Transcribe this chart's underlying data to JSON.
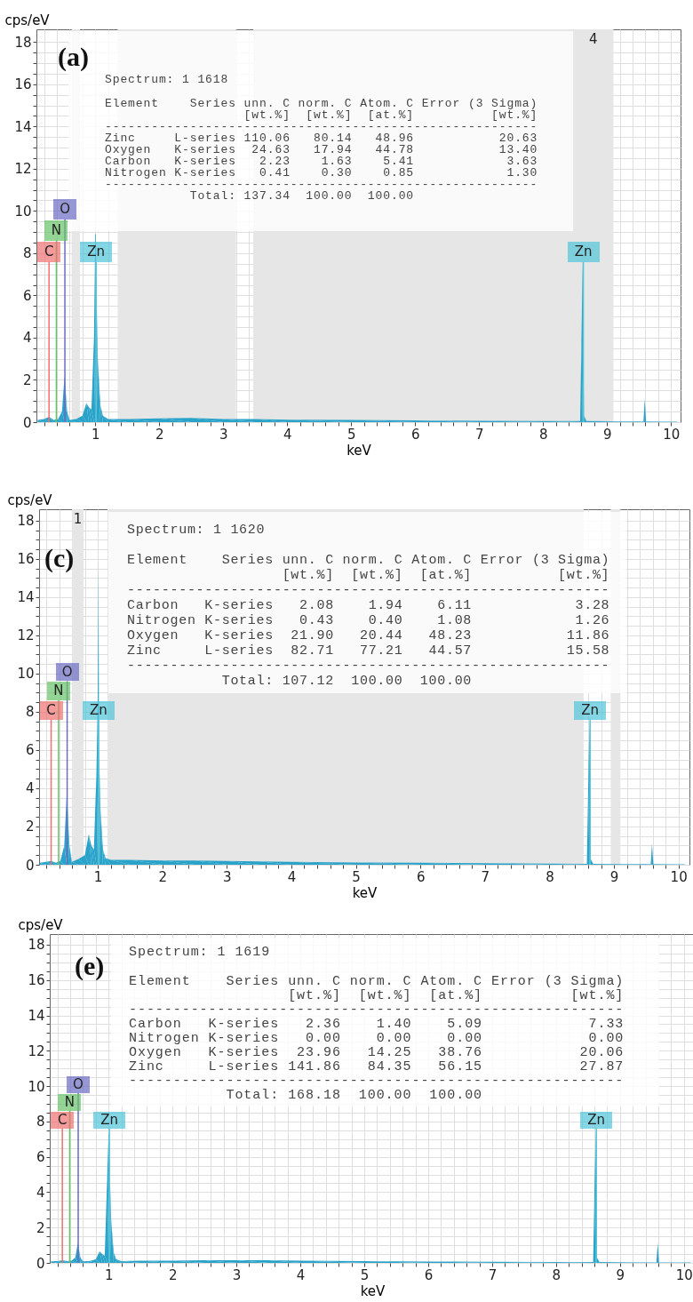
{
  "chart_data": [
    {
      "type": "area",
      "title": "(a)",
      "xlabel": "keV",
      "ylabel": "cps/eV",
      "grid": true,
      "xlim": [
        0.08,
        10.15
      ],
      "ylim": [
        0,
        18.6
      ],
      "xticks": [
        {
          "value": 0.2,
          "label": null
        },
        {
          "value": 0.4,
          "label": null
        },
        {
          "value": 0.6,
          "label": null
        },
        {
          "value": 0.8,
          "label": null
        },
        1,
        {
          "value": 1.2,
          "label": null
        },
        {
          "value": 1.4,
          "label": null
        },
        {
          "value": 1.6,
          "label": null
        },
        {
          "value": 1.8,
          "label": null
        },
        2,
        {
          "value": 2.2,
          "label": null
        },
        {
          "value": 2.4,
          "label": null
        },
        {
          "value": 2.6,
          "label": null
        },
        {
          "value": 2.8,
          "label": null
        },
        3,
        {
          "value": 3.2,
          "label": null
        },
        {
          "value": 3.4,
          "label": null
        },
        {
          "value": 3.6,
          "label": null
        },
        {
          "value": 3.8,
          "label": null
        },
        4,
        {
          "value": 4.2,
          "label": null
        },
        {
          "value": 4.4,
          "label": null
        },
        {
          "value": 4.6,
          "label": null
        },
        {
          "value": 4.8,
          "label": null
        },
        5,
        {
          "value": 5.2,
          "label": null
        },
        {
          "value": 5.4,
          "label": null
        },
        {
          "value": 5.6,
          "label": null
        },
        {
          "value": 5.8,
          "label": null
        },
        6,
        {
          "value": 6.2,
          "label": null
        },
        {
          "value": 6.4,
          "label": null
        },
        {
          "value": 6.6,
          "label": null
        },
        {
          "value": 6.8,
          "label": null
        },
        7,
        {
          "value": 7.2,
          "label": null
        },
        {
          "value": 7.4,
          "label": null
        },
        {
          "value": 7.6,
          "label": null
        },
        {
          "value": 7.8,
          "label": null
        },
        8,
        {
          "value": 8.2,
          "label": null
        },
        {
          "value": 8.4,
          "label": null
        },
        {
          "value": 8.6,
          "label": null
        },
        {
          "value": 8.8,
          "label": null
        },
        9,
        {
          "value": 9.2,
          "label": null
        },
        {
          "value": 9.4,
          "label": null
        },
        {
          "value": 9.6,
          "label": null
        },
        {
          "value": 9.8,
          "label": null
        },
        10
      ],
      "yticks": [
        0,
        {
          "value": 0.5,
          "label": null
        },
        {
          "value": 1,
          "label": null
        },
        {
          "value": 1.5,
          "label": null
        },
        2,
        {
          "value": 2.5,
          "label": null
        },
        {
          "value": 3,
          "label": null
        },
        {
          "value": 3.5,
          "label": null
        },
        4,
        {
          "value": 4.5,
          "label": null
        },
        {
          "value": 5,
          "label": null
        },
        {
          "value": 5.5,
          "label": null
        },
        6,
        {
          "value": 6.5,
          "label": null
        },
        {
          "value": 7,
          "label": null
        },
        {
          "value": 7.5,
          "label": null
        },
        8,
        {
          "value": 8.5,
          "label": null
        },
        {
          "value": 9,
          "label": null
        },
        {
          "value": 9.5,
          "label": null
        },
        10,
        {
          "value": 10.5,
          "label": null
        },
        {
          "value": 11,
          "label": null
        },
        {
          "value": 11.5,
          "label": null
        },
        12,
        {
          "value": 12.5,
          "label": null
        },
        {
          "value": 13,
          "label": null
        },
        {
          "value": 13.5,
          "label": null
        },
        14,
        {
          "value": 14.5,
          "label": null
        },
        {
          "value": 15,
          "label": null
        },
        {
          "value": 15.5,
          "label": null
        },
        16,
        {
          "value": 16.5,
          "label": null
        },
        {
          "value": 17,
          "label": null
        },
        {
          "value": 17.5,
          "label": null
        },
        18
      ],
      "x": [
        0.1,
        0.2,
        0.28,
        0.35,
        0.42,
        0.48,
        0.52,
        0.56,
        0.6,
        0.7,
        0.8,
        0.86,
        0.9,
        0.94,
        0.98,
        1.0,
        1.01,
        1.02,
        1.04,
        1.08,
        1.12,
        1.2,
        1.5,
        2,
        2.5,
        3,
        3.5,
        4,
        5,
        6,
        7,
        8,
        8.58,
        8.6,
        8.62,
        8.64,
        8.68,
        9.5,
        9.57,
        9.59,
        9.61,
        10.1
      ],
      "series": [
        {
          "color": "#29a3c9",
          "values": [
            0.1,
            0.15,
            0.25,
            0.1,
            0.15,
            0.5,
            2.2,
            0.5,
            0.1,
            0.15,
            0.3,
            0.9,
            0.7,
            0.6,
            4.0,
            8.9,
            8.9,
            6.0,
            3.0,
            0.8,
            0.3,
            0.15,
            0.15,
            0.18,
            0.2,
            0.15,
            0.15,
            0.12,
            0.1,
            0.08,
            0.06,
            0.05,
            0.05,
            3.8,
            7.6,
            0.3,
            0.05,
            0.03,
            0.03,
            1.1,
            0.03,
            0.02
          ]
        }
      ],
      "bands": [
        {
          "axis": "x",
          "from": 0.63,
          "to": 0.76,
          "color": "#e6e6e6"
        },
        {
          "axis": "x",
          "from": 1.35,
          "to": 3.2,
          "color": "#e6e6e6"
        },
        {
          "axis": "x",
          "from": 3.47,
          "to": 8.47,
          "color": "#e6e6e6"
        },
        {
          "axis": "x",
          "from": 8.47,
          "to": 9.1,
          "label": "4",
          "color": "#e6e6e6"
        }
      ],
      "ref_lines": [
        {
          "axis": "x",
          "value": 0.277,
          "label": "C",
          "color": "#f07070"
        },
        {
          "axis": "x",
          "value": 0.392,
          "label": "N",
          "color": "#66c266"
        },
        {
          "axis": "x",
          "value": 0.525,
          "label": "O",
          "color": "#6b6bc4"
        },
        {
          "axis": "x",
          "value": 1.012,
          "label": "Zn",
          "color": "#50c4d8"
        },
        {
          "axis": "x",
          "value": 8.63,
          "label": "Zn",
          "color": "#50c4d8"
        }
      ],
      "annotations": [
        "Spectrum: 1 1618",
        "Element    Series unn. C norm. C Atom. C Error (3 Sigma)",
        "                  [wt.%]  [wt.%]  [at.%]          [wt.%]",
        "--------------------------------------------------------",
        "Zinc     L-series 110.06   80.14   48.96           20.63",
        "Oxygen   K-series  24.63   17.94   44.78           13.40",
        "Carbon   K-series   2.23    1.63    5.41            3.63",
        "Nitrogen K-series   0.41    0.30    0.85            1.30",
        "--------------------------------------------------------",
        "           Total: 137.34  100.00  100.00"
      ]
    },
    {
      "type": "area",
      "title": "(c)",
      "xlabel": "keV",
      "ylabel": "cps/eV",
      "grid": true,
      "xlim": [
        0.09,
        10.17
      ],
      "ylim": [
        0,
        18.6
      ],
      "xticks": [
        {
          "value": 0.2,
          "label": null
        },
        {
          "value": 0.4,
          "label": null
        },
        {
          "value": 0.6,
          "label": null
        },
        {
          "value": 0.8,
          "label": null
        },
        1,
        {
          "value": 1.2,
          "label": null
        },
        {
          "value": 1.4,
          "label": null
        },
        {
          "value": 1.6,
          "label": null
        },
        {
          "value": 1.8,
          "label": null
        },
        2,
        {
          "value": 2.2,
          "label": null
        },
        {
          "value": 2.4,
          "label": null
        },
        {
          "value": 2.6,
          "label": null
        },
        {
          "value": 2.8,
          "label": null
        },
        3,
        {
          "value": 3.2,
          "label": null
        },
        {
          "value": 3.4,
          "label": null
        },
        {
          "value": 3.6,
          "label": null
        },
        {
          "value": 3.8,
          "label": null
        },
        4,
        {
          "value": 4.2,
          "label": null
        },
        {
          "value": 4.4,
          "label": null
        },
        {
          "value": 4.6,
          "label": null
        },
        {
          "value": 4.8,
          "label": null
        },
        5,
        {
          "value": 5.2,
          "label": null
        },
        {
          "value": 5.4,
          "label": null
        },
        {
          "value": 5.6,
          "label": null
        },
        {
          "value": 5.8,
          "label": null
        },
        6,
        {
          "value": 6.2,
          "label": null
        },
        {
          "value": 6.4,
          "label": null
        },
        {
          "value": 6.6,
          "label": null
        },
        {
          "value": 6.8,
          "label": null
        },
        7,
        {
          "value": 7.2,
          "label": null
        },
        {
          "value": 7.4,
          "label": null
        },
        {
          "value": 7.6,
          "label": null
        },
        {
          "value": 7.8,
          "label": null
        },
        8,
        {
          "value": 8.2,
          "label": null
        },
        {
          "value": 8.4,
          "label": null
        },
        {
          "value": 8.6,
          "label": null
        },
        {
          "value": 8.8,
          "label": null
        },
        9,
        {
          "value": 9.2,
          "label": null
        },
        {
          "value": 9.4,
          "label": null
        },
        {
          "value": 9.6,
          "label": null
        },
        {
          "value": 9.8,
          "label": null
        },
        10
      ],
      "yticks": [
        0,
        {
          "value": 0.5,
          "label": null
        },
        {
          "value": 1,
          "label": null
        },
        {
          "value": 1.5,
          "label": null
        },
        2,
        {
          "value": 2.5,
          "label": null
        },
        {
          "value": 3,
          "label": null
        },
        {
          "value": 3.5,
          "label": null
        },
        4,
        {
          "value": 4.5,
          "label": null
        },
        {
          "value": 5,
          "label": null
        },
        {
          "value": 5.5,
          "label": null
        },
        6,
        {
          "value": 6.5,
          "label": null
        },
        {
          "value": 7,
          "label": null
        },
        {
          "value": 7.5,
          "label": null
        },
        8,
        {
          "value": 8.5,
          "label": null
        },
        {
          "value": 9,
          "label": null
        },
        {
          "value": 9.5,
          "label": null
        },
        10,
        {
          "value": 10.5,
          "label": null
        },
        {
          "value": 11,
          "label": null
        },
        {
          "value": 11.5,
          "label": null
        },
        12,
        {
          "value": 12.5,
          "label": null
        },
        {
          "value": 13,
          "label": null
        },
        {
          "value": 13.5,
          "label": null
        },
        14,
        {
          "value": 14.5,
          "label": null
        },
        {
          "value": 15,
          "label": null
        },
        {
          "value": 15.5,
          "label": null
        },
        16,
        {
          "value": 16.5,
          "label": null
        },
        {
          "value": 17,
          "label": null
        },
        {
          "value": 17.5,
          "label": null
        },
        18
      ],
      "x": [
        0.1,
        0.2,
        0.28,
        0.35,
        0.42,
        0.48,
        0.52,
        0.56,
        0.6,
        0.7,
        0.8,
        0.86,
        0.9,
        0.94,
        0.98,
        1.0,
        1.01,
        1.02,
        1.04,
        1.08,
        1.12,
        1.2,
        1.5,
        2,
        2.5,
        3,
        3.5,
        4,
        5,
        6,
        7,
        8,
        8.58,
        8.6,
        8.62,
        8.64,
        8.68,
        9.5,
        9.57,
        9.59,
        9.61,
        10.1
      ],
      "series": [
        {
          "color": "#29a3c9",
          "values": [
            0.1,
            0.15,
            0.2,
            0.1,
            0.2,
            1.0,
            3.8,
            1.0,
            0.15,
            0.3,
            0.5,
            1.6,
            1.0,
            0.8,
            5.0,
            8.9,
            15.9,
            6.0,
            3.0,
            0.8,
            0.35,
            0.25,
            0.25,
            0.22,
            0.22,
            0.2,
            0.18,
            0.15,
            0.12,
            0.1,
            0.08,
            0.06,
            0.05,
            3.9,
            7.6,
            0.3,
            0.05,
            0.03,
            0.03,
            1.1,
            0.03,
            0.02
          ]
        }
      ],
      "bands": [
        {
          "axis": "x",
          "from": 0.6,
          "to": 0.78,
          "label": "1",
          "color": "#e6e6e6"
        },
        {
          "axis": "x",
          "from": 1.15,
          "to": 8.53,
          "color": "#e6e6e6"
        },
        {
          "axis": "x",
          "from": 8.95,
          "to": 9.1,
          "color": "#e6e6e6"
        }
      ],
      "ref_lines": [
        {
          "axis": "x",
          "value": 0.277,
          "label": "C",
          "color": "#f07070"
        },
        {
          "axis": "x",
          "value": 0.392,
          "label": "N",
          "color": "#66c266"
        },
        {
          "axis": "x",
          "value": 0.525,
          "label": "O",
          "color": "#6b6bc4"
        },
        {
          "axis": "x",
          "value": 1.012,
          "label": "Zn",
          "color": "#50c4d8"
        },
        {
          "axis": "x",
          "value": 8.63,
          "label": "Zn",
          "color": "#50c4d8"
        }
      ],
      "annotations": [
        "Spectrum: 1 1620",
        "Element    Series unn. C norm. C Atom. C Error (3 Sigma)",
        "                  [wt.%]  [wt.%]  [at.%]          [wt.%]",
        "--------------------------------------------------------",
        "Carbon   K-series   2.08    1.94    6.11            3.28",
        "Nitrogen K-series   0.43    0.40    1.08            1.26",
        "Oxygen   K-series  21.90   20.44   48.23           11.86",
        "Zinc     L-series  82.71   77.21   44.57           15.58",
        "--------------------------------------------------------",
        "           Total: 107.12  100.00  100.00"
      ]
    },
    {
      "type": "area",
      "title": "(e)",
      "xlabel": "keV",
      "ylabel": "cps/eV",
      "grid": true,
      "xlim": [
        0.08,
        10.17
      ],
      "ylim": [
        0,
        18.6
      ],
      "xticks": [
        {
          "value": 0.2,
          "label": null
        },
        {
          "value": 0.4,
          "label": null
        },
        {
          "value": 0.6,
          "label": null
        },
        {
          "value": 0.8,
          "label": null
        },
        1,
        {
          "value": 1.2,
          "label": null
        },
        {
          "value": 1.4,
          "label": null
        },
        {
          "value": 1.6,
          "label": null
        },
        {
          "value": 1.8,
          "label": null
        },
        2,
        {
          "value": 2.2,
          "label": null
        },
        {
          "value": 2.4,
          "label": null
        },
        {
          "value": 2.6,
          "label": null
        },
        {
          "value": 2.8,
          "label": null
        },
        3,
        {
          "value": 3.2,
          "label": null
        },
        {
          "value": 3.4,
          "label": null
        },
        {
          "value": 3.6,
          "label": null
        },
        {
          "value": 3.8,
          "label": null
        },
        4,
        {
          "value": 4.2,
          "label": null
        },
        {
          "value": 4.4,
          "label": null
        },
        {
          "value": 4.6,
          "label": null
        },
        {
          "value": 4.8,
          "label": null
        },
        5,
        {
          "value": 5.2,
          "label": null
        },
        {
          "value": 5.4,
          "label": null
        },
        {
          "value": 5.6,
          "label": null
        },
        {
          "value": 5.8,
          "label": null
        },
        6,
        {
          "value": 6.2,
          "label": null
        },
        {
          "value": 6.4,
          "label": null
        },
        {
          "value": 6.6,
          "label": null
        },
        {
          "value": 6.8,
          "label": null
        },
        7,
        {
          "value": 7.2,
          "label": null
        },
        {
          "value": 7.4,
          "label": null
        },
        {
          "value": 7.6,
          "label": null
        },
        {
          "value": 7.8,
          "label": null
        },
        8,
        {
          "value": 8.2,
          "label": null
        },
        {
          "value": 8.4,
          "label": null
        },
        {
          "value": 8.6,
          "label": null
        },
        {
          "value": 8.8,
          "label": null
        },
        9,
        {
          "value": 9.2,
          "label": null
        },
        {
          "value": 9.4,
          "label": null
        },
        {
          "value": 9.6,
          "label": null
        },
        {
          "value": 9.8,
          "label": null
        },
        10
      ],
      "yticks": [
        0,
        {
          "value": 0.5,
          "label": null
        },
        {
          "value": 1,
          "label": null
        },
        {
          "value": 1.5,
          "label": null
        },
        2,
        {
          "value": 2.5,
          "label": null
        },
        {
          "value": 3,
          "label": null
        },
        {
          "value": 3.5,
          "label": null
        },
        4,
        {
          "value": 4.5,
          "label": null
        },
        {
          "value": 5,
          "label": null
        },
        {
          "value": 5.5,
          "label": null
        },
        6,
        {
          "value": 6.5,
          "label": null
        },
        {
          "value": 7,
          "label": null
        },
        {
          "value": 7.5,
          "label": null
        },
        8,
        {
          "value": 8.5,
          "label": null
        },
        {
          "value": 9,
          "label": null
        },
        {
          "value": 9.5,
          "label": null
        },
        10,
        {
          "value": 10.5,
          "label": null
        },
        {
          "value": 11,
          "label": null
        },
        {
          "value": 11.5,
          "label": null
        },
        12,
        {
          "value": 12.5,
          "label": null
        },
        {
          "value": 13,
          "label": null
        },
        {
          "value": 13.5,
          "label": null
        },
        14,
        {
          "value": 14.5,
          "label": null
        },
        {
          "value": 15,
          "label": null
        },
        {
          "value": 15.5,
          "label": null
        },
        16,
        {
          "value": 16.5,
          "label": null
        },
        {
          "value": 17,
          "label": null
        },
        {
          "value": 17.5,
          "label": null
        },
        18
      ],
      "x": [
        0.1,
        0.2,
        0.28,
        0.35,
        0.42,
        0.48,
        0.52,
        0.56,
        0.6,
        0.7,
        0.8,
        0.86,
        0.9,
        0.94,
        0.98,
        1.0,
        1.01,
        1.02,
        1.04,
        1.08,
        1.12,
        1.2,
        1.5,
        2,
        2.5,
        3,
        3.5,
        4,
        5,
        6,
        7,
        8,
        8.58,
        8.6,
        8.62,
        8.64,
        8.68,
        9.5,
        9.57,
        9.59,
        9.61,
        10.1
      ],
      "series": [
        {
          "color": "#29a3c9",
          "values": [
            0.1,
            0.1,
            0.15,
            0.1,
            0.12,
            0.3,
            1.15,
            0.3,
            0.1,
            0.1,
            0.2,
            0.65,
            0.5,
            0.4,
            5.0,
            7.3,
            7.3,
            5.0,
            2.5,
            0.6,
            0.2,
            0.1,
            0.12,
            0.12,
            0.15,
            0.15,
            0.15,
            0.12,
            0.1,
            0.08,
            0.06,
            0.05,
            0.05,
            3.9,
            7.5,
            0.3,
            0.05,
            0.03,
            0.03,
            1.15,
            0.03,
            0.02
          ]
        }
      ],
      "ref_lines": [
        {
          "axis": "x",
          "value": 0.277,
          "label": "C",
          "color": "#f07070"
        },
        {
          "axis": "x",
          "value": 0.392,
          "label": "N",
          "color": "#66c266"
        },
        {
          "axis": "x",
          "value": 0.525,
          "label": "O",
          "color": "#6b6bc4"
        },
        {
          "axis": "x",
          "value": 1.012,
          "label": "Zn",
          "color": "#50c4d8"
        },
        {
          "axis": "x",
          "value": 8.63,
          "label": "Zn",
          "color": "#50c4d8"
        }
      ],
      "annotations": [
        "Spectrum: 1 1619",
        "Element    Series unn. C norm. C Atom. C Error (3 Sigma)",
        "                  [wt.%]  [wt.%]  [at.%]          [wt.%]",
        "--------------------------------------------------------",
        "Carbon   K-series   2.36    1.40    5.09            7.33",
        "Nitrogen K-series   0.00    0.00    0.00            0.00",
        "Oxygen   K-series  23.96   14.25   38.76           20.06",
        "Zinc     L-series 141.86   84.35   56.15           27.87",
        "--------------------------------------------------------",
        "           Total: 168.18  100.00  100.00"
      ]
    }
  ]
}
